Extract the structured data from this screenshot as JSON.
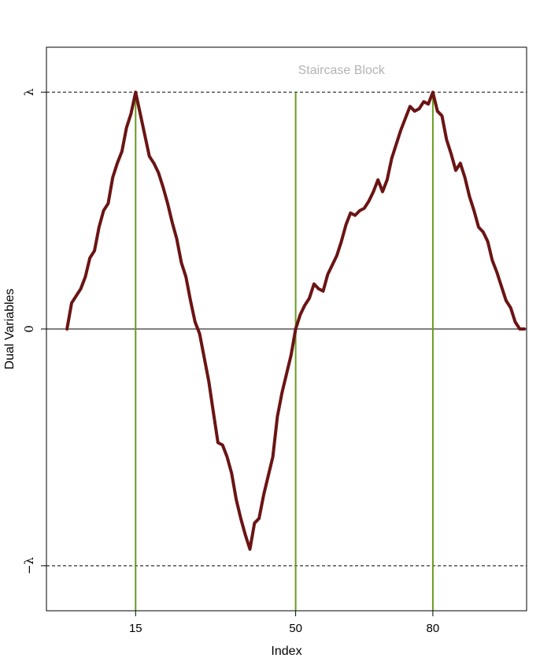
{
  "chart_data": {
    "type": "line",
    "annotation": "Staircase Block",
    "xlabel": "Index",
    "ylabel": "Dual Variables",
    "xlim": [
      -4.5,
      100.5
    ],
    "ylim": [
      -1.19,
      1.19
    ],
    "x_ticks": [
      {
        "value": 15,
        "label": "15"
      },
      {
        "value": 50,
        "label": "50"
      },
      {
        "value": 80,
        "label": "80"
      }
    ],
    "y_ticks": [
      {
        "value": -1,
        "label": "−λ"
      },
      {
        "value": 0,
        "label": "0"
      },
      {
        "value": 1,
        "label": "λ"
      }
    ],
    "reference_lines": [
      {
        "orientation": "horizontal",
        "value": 1,
        "style": "dashed",
        "color": "#000000"
      },
      {
        "orientation": "horizontal",
        "value": -1,
        "style": "dashed",
        "color": "#000000"
      },
      {
        "orientation": "horizontal",
        "value": 0,
        "style": "solid",
        "color": "#000000"
      }
    ],
    "vertical_lines": {
      "x": [
        15,
        50,
        80
      ],
      "color": "#6a9a1f"
    },
    "series": [
      {
        "color": "#6b1414",
        "x": [
          0,
          1,
          2,
          3,
          4,
          5,
          6,
          7,
          8,
          9,
          10,
          11,
          12,
          13,
          14,
          15,
          16,
          17,
          18,
          19,
          20,
          21,
          22,
          23,
          24,
          25,
          26,
          27,
          28,
          29,
          30,
          31,
          32,
          33,
          34,
          35,
          36,
          37,
          38,
          39,
          40,
          41,
          42,
          43,
          44,
          45,
          46,
          47,
          48,
          49,
          50,
          51,
          52,
          53,
          54,
          55,
          56,
          57,
          58,
          59,
          60,
          61,
          62,
          63,
          64,
          65,
          66,
          67,
          68,
          69,
          70,
          71,
          72,
          73,
          74,
          75,
          76,
          77,
          78,
          79,
          80,
          81,
          82,
          83,
          84,
          85,
          86,
          87,
          88,
          89,
          90,
          91,
          92,
          93,
          94,
          95,
          96,
          97,
          98,
          99,
          100
        ],
        "y": [
          0.0,
          0.11,
          0.14,
          0.17,
          0.22,
          0.3,
          0.33,
          0.43,
          0.5,
          0.53,
          0.64,
          0.7,
          0.75,
          0.85,
          0.91,
          1.0,
          0.91,
          0.82,
          0.73,
          0.7,
          0.66,
          0.6,
          0.53,
          0.45,
          0.38,
          0.28,
          0.22,
          0.12,
          0.03,
          -0.02,
          -0.12,
          -0.22,
          -0.35,
          -0.48,
          -0.49,
          -0.54,
          -0.61,
          -0.72,
          -0.8,
          -0.87,
          -0.93,
          -0.82,
          -0.8,
          -0.7,
          -0.62,
          -0.54,
          -0.37,
          -0.27,
          -0.19,
          -0.11,
          0.0,
          0.06,
          0.1,
          0.13,
          0.19,
          0.17,
          0.16,
          0.23,
          0.27,
          0.31,
          0.37,
          0.44,
          0.49,
          0.48,
          0.5,
          0.51,
          0.54,
          0.58,
          0.63,
          0.58,
          0.63,
          0.72,
          0.78,
          0.84,
          0.89,
          0.94,
          0.92,
          0.93,
          0.96,
          0.95,
          1.0,
          0.92,
          0.9,
          0.8,
          0.74,
          0.67,
          0.7,
          0.64,
          0.56,
          0.5,
          0.43,
          0.41,
          0.37,
          0.29,
          0.24,
          0.18,
          0.12,
          0.09,
          0.03,
          0.0,
          0.0
        ]
      }
    ],
    "grid": false,
    "legend": "none",
    "box": true
  }
}
